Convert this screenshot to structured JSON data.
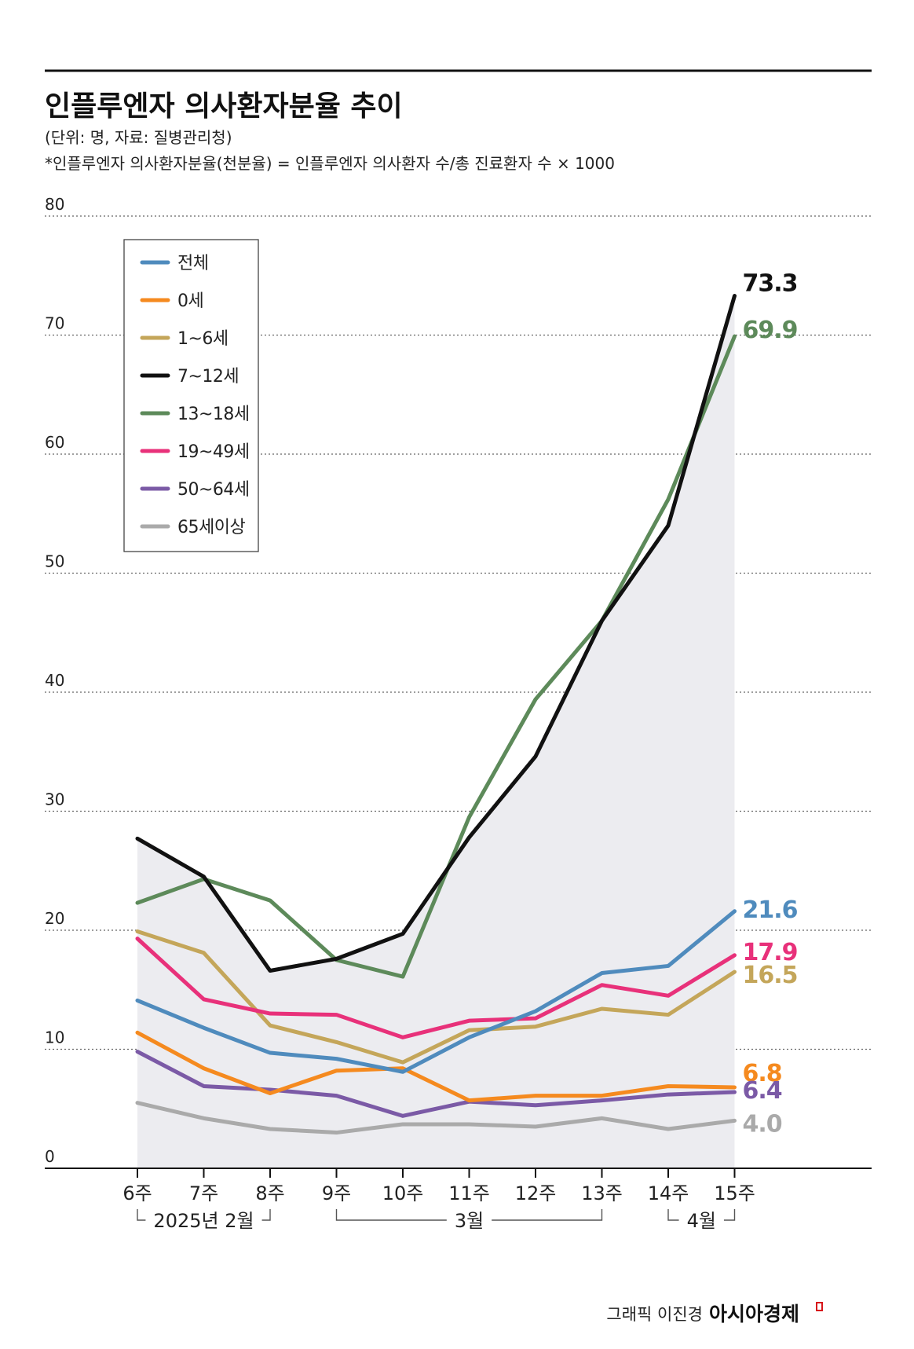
{
  "chart_data": {
    "type": "line",
    "title": "인플루엔자 의사환자분율 추이",
    "subtitle": "(단위: 명, 자료: 질병관리청)",
    "note": "*인플루엔자 의사환자분율(천분율) = 인플루엔자 의사환자 수/총 진료환자 수 × 1000",
    "xlabel": "",
    "ylabel": "",
    "ylim": [
      0,
      80
    ],
    "yticks": [
      0,
      10,
      20,
      30,
      40,
      50,
      60,
      70,
      80
    ],
    "grid": true,
    "legend_position": "top-left",
    "categories": [
      "6주",
      "7주",
      "8주",
      "9주",
      "10주",
      "11주",
      "12주",
      "13주",
      "14주",
      "15주"
    ],
    "month_groups": [
      {
        "label": "2025년 2월",
        "from": 0,
        "to": 2
      },
      {
        "label": "3월",
        "from": 3,
        "to": 7
      },
      {
        "label": "4월",
        "from": 8,
        "to": 9
      }
    ],
    "shaded_area_series": "7~12세",
    "series": [
      {
        "name": "전체",
        "color": "#4f8bbd",
        "end_label": "21.6",
        "values": [
          14.1,
          11.8,
          9.7,
          9.2,
          8.1,
          11.0,
          13.2,
          16.4,
          17.0,
          21.6
        ]
      },
      {
        "name": "0세",
        "color": "#f58a1f",
        "end_label": "6.8",
        "values": [
          11.4,
          8.4,
          6.3,
          8.2,
          8.4,
          5.7,
          6.1,
          6.1,
          6.9,
          6.8
        ]
      },
      {
        "name": "1~6세",
        "color": "#c4a65a",
        "end_label": "16.5",
        "values": [
          19.9,
          18.1,
          12.0,
          10.6,
          8.9,
          11.6,
          11.9,
          13.4,
          12.9,
          16.5
        ]
      },
      {
        "name": "7~12세",
        "color": "#111111",
        "end_label": "73.3",
        "values": [
          27.7,
          24.5,
          16.6,
          17.6,
          19.7,
          27.8,
          34.6,
          46.0,
          54.0,
          73.3
        ]
      },
      {
        "name": "13~18세",
        "color": "#5d8a5a",
        "end_label": "69.9",
        "values": [
          22.3,
          24.3,
          22.5,
          17.5,
          16.1,
          29.5,
          39.4,
          46.0,
          56.2,
          69.9
        ]
      },
      {
        "name": "19~49세",
        "color": "#e8317a",
        "end_label": "17.9",
        "values": [
          19.3,
          14.2,
          13.0,
          12.9,
          11.0,
          12.4,
          12.6,
          15.4,
          14.5,
          17.9
        ]
      },
      {
        "name": "50~64세",
        "color": "#7b5aa6",
        "end_label": "6.4",
        "values": [
          9.8,
          6.9,
          6.6,
          6.1,
          4.4,
          5.6,
          5.3,
          5.7,
          6.2,
          6.4
        ]
      },
      {
        "name": "65세이상",
        "color": "#aaaaaa",
        "end_label": "4.0",
        "values": [
          5.5,
          4.2,
          3.3,
          3.0,
          3.7,
          3.7,
          3.5,
          4.2,
          3.3,
          4.0
        ]
      }
    ]
  },
  "footer": {
    "credit": "그래픽 이진경",
    "brand": "아시아경제",
    "brand_mark_color": "#d7141a"
  }
}
